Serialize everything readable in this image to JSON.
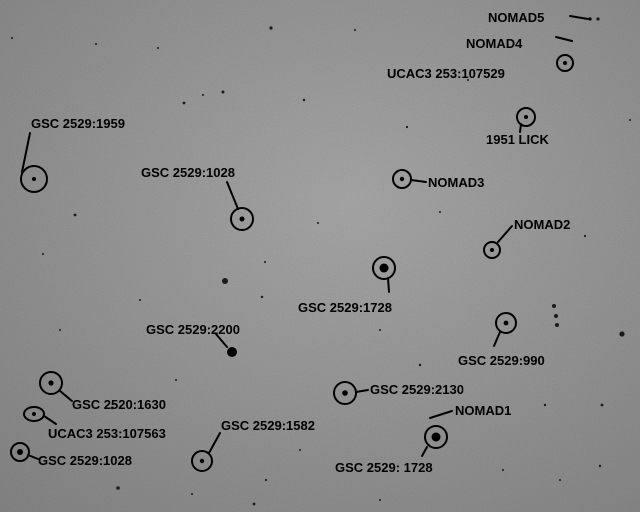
{
  "image": {
    "description_colors": {
      "sky_light": "#a8a8a8",
      "sky_dark": "#858585",
      "ink": "#000000"
    }
  },
  "labels": [
    {
      "id": "nomad5",
      "text": "NOMAD5"
    },
    {
      "id": "nomad4",
      "text": "NOMAD4"
    },
    {
      "id": "ucac3-107529",
      "text": "UCAC3 253:107529"
    },
    {
      "id": "lick1951",
      "text": "1951 LICK"
    },
    {
      "id": "gsc1959",
      "text": "GSC 2529:1959"
    },
    {
      "id": "gsc1028a",
      "text": "GSC 2529:1028"
    },
    {
      "id": "nomad3",
      "text": "NOMAD3"
    },
    {
      "id": "nomad2",
      "text": "NOMAD2"
    },
    {
      "id": "gsc1728a",
      "text": "GSC 2529:1728"
    },
    {
      "id": "gsc2200",
      "text": "GSC 2529:2200"
    },
    {
      "id": "gsc990",
      "text": "GSC 2529:990"
    },
    {
      "id": "gsc2130",
      "text": "GSC 2529:2130"
    },
    {
      "id": "gsc1630",
      "text": "GSC 2520:1630"
    },
    {
      "id": "nomad1",
      "text": "NOMAD1"
    },
    {
      "id": "ucac3-107563",
      "text": "UCAC3 253:107563"
    },
    {
      "id": "gsc1582",
      "text": "GSC 2529:1582"
    },
    {
      "id": "gsc1028b",
      "text": "GSC 2529:1028"
    },
    {
      "id": "gsc1728b",
      "text": "GSC 2529: 1728"
    }
  ]
}
